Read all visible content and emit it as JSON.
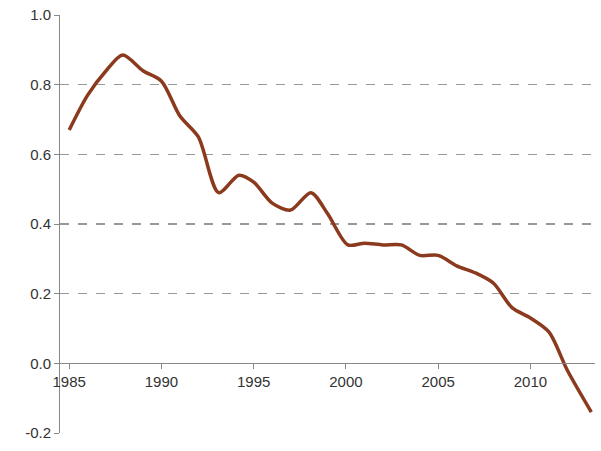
{
  "chart_data": {
    "type": "line",
    "x": [
      1985,
      1986,
      1987,
      1987.9,
      1989,
      1990,
      1991,
      1992,
      1993.1,
      1994.2,
      1995,
      1996,
      1997,
      1998.1,
      1999,
      2000.1,
      2001,
      2002,
      2003,
      2004,
      2005,
      2006,
      2007,
      2008,
      2009,
      2010,
      2011,
      2012,
      2013.3
    ],
    "values": [
      0.67,
      0.77,
      0.84,
      0.885,
      0.84,
      0.81,
      0.71,
      0.65,
      0.49,
      0.54,
      0.52,
      0.46,
      0.44,
      0.49,
      0.43,
      0.34,
      0.345,
      0.34,
      0.34,
      0.31,
      0.31,
      0.28,
      0.26,
      0.23,
      0.16,
      0.13,
      0.09,
      -0.02,
      -0.14
    ],
    "color": "#8b3a1e",
    "xlim": [
      1984.5,
      2013.5
    ],
    "xticks": [
      1985,
      1990,
      1995,
      2000,
      2005,
      2010
    ],
    "ylim": [
      -0.2,
      1.0
    ],
    "yticks": [
      -0.2,
      {
        "value": 0,
        "label": "0.0"
      },
      0.2,
      0.4,
      0.6,
      0.8,
      {
        "value": 1,
        "label": "1.0"
      }
    ],
    "grid": true
  }
}
